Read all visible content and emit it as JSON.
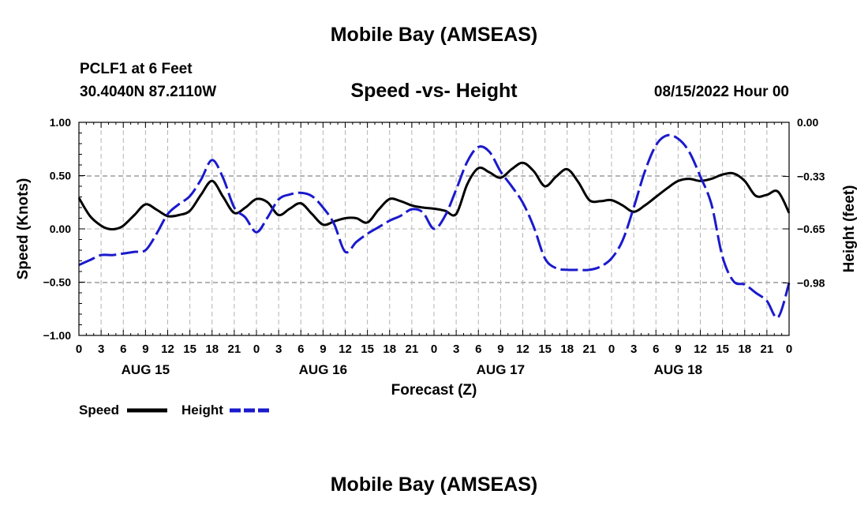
{
  "header": {
    "title": "Mobile Bay (AMSEAS)",
    "station": "PCLF1 at 6 Feet",
    "coords": "30.4040N  87.2110W",
    "subtitle": "Speed -vs- Height",
    "issue_time": "08/15/2022 Hour 00"
  },
  "footer": {
    "title": "Mobile Bay (AMSEAS)"
  },
  "legend": {
    "speed_label": "Speed",
    "height_label": "Height"
  },
  "colors": {
    "speed": "#000000",
    "height": "#1a1acc",
    "grid": "#b4b4b4"
  },
  "chart_data": {
    "type": "line",
    "title": "Speed -vs- Height",
    "xlabel": "Forecast (Z)",
    "ylabel_left": "Speed (Knots)",
    "ylabel_right": "Height (feet)",
    "x_units": "forecast hours",
    "xlim": [
      0,
      96
    ],
    "ylim_left": [
      -1.0,
      1.0
    ],
    "ylim_right": [
      -1.3,
      0.0
    ],
    "x_tick_labels": [
      "0",
      "3",
      "6",
      "9",
      "12",
      "15",
      "18",
      "21",
      "0",
      "3",
      "6",
      "9",
      "12",
      "15",
      "18",
      "21",
      "0",
      "3",
      "6",
      "9",
      "12",
      "15",
      "18",
      "21",
      "0",
      "3",
      "6",
      "9",
      "12",
      "15",
      "18",
      "21",
      "0"
    ],
    "day_labels": [
      {
        "label": "AUG 15",
        "hour": 9
      },
      {
        "label": "AUG 16",
        "hour": 33
      },
      {
        "label": "AUG 17",
        "hour": 57
      },
      {
        "label": "AUG 18",
        "hour": 81
      }
    ],
    "left_ticks": [
      {
        "value": 1.0,
        "label": "1.00"
      },
      {
        "value": 0.5,
        "label": "0.50"
      },
      {
        "value": 0.0,
        "label": "0.00"
      },
      {
        "value": -0.5,
        "label": "−0.50"
      },
      {
        "value": -1.0,
        "label": "−1.00"
      }
    ],
    "right_ticks": [
      {
        "value": 0.0,
        "label": "0.00"
      },
      {
        "value": -0.33,
        "label": "−0.33"
      },
      {
        "value": -0.65,
        "label": "−0.65"
      },
      {
        "value": -0.98,
        "label": "−0.98"
      }
    ],
    "series": [
      {
        "name": "Speed",
        "axis": "left",
        "style": "solid",
        "x": [
          0,
          1.5,
          3,
          4,
          5,
          6,
          7.5,
          9,
          10.5,
          12,
          13.5,
          15,
          16.5,
          18,
          19.5,
          21,
          22.5,
          24,
          25.5,
          27,
          28.5,
          30,
          31.5,
          33,
          34.5,
          36,
          37.5,
          39,
          40.5,
          42,
          43.5,
          45,
          46.5,
          48,
          49.5,
          51,
          52.5,
          54,
          55.5,
          57,
          58.5,
          60,
          61.5,
          63,
          64.5,
          66,
          67.5,
          69,
          70.5,
          72,
          73.5,
          75,
          76.5,
          78,
          79.5,
          81,
          82.5,
          84,
          85.5,
          87,
          88.5,
          90,
          91.5,
          93,
          94.5,
          96
        ],
        "values": [
          0.29,
          0.12,
          0.03,
          0.0,
          0.0,
          0.03,
          0.13,
          0.23,
          0.18,
          0.12,
          0.13,
          0.17,
          0.32,
          0.45,
          0.3,
          0.15,
          0.2,
          0.28,
          0.25,
          0.13,
          0.19,
          0.24,
          0.14,
          0.04,
          0.07,
          0.1,
          0.1,
          0.06,
          0.18,
          0.28,
          0.26,
          0.22,
          0.2,
          0.19,
          0.17,
          0.14,
          0.42,
          0.57,
          0.53,
          0.48,
          0.56,
          0.62,
          0.54,
          0.4,
          0.49,
          0.56,
          0.44,
          0.27,
          0.26,
          0.27,
          0.22,
          0.16,
          0.22,
          0.3,
          0.38,
          0.45,
          0.47,
          0.45,
          0.47,
          0.51,
          0.52,
          0.45,
          0.31,
          0.32,
          0.35,
          0.15
        ]
      },
      {
        "name": "Height",
        "axis": "right",
        "style": "dashed",
        "x": [
          0,
          1.5,
          3,
          4.5,
          6,
          7.5,
          9,
          10.5,
          12,
          13.5,
          15,
          16.5,
          18,
          19.5,
          21,
          22.5,
          24,
          25.5,
          27,
          28.5,
          30,
          31.5,
          33,
          34.5,
          36,
          37.5,
          39,
          40.5,
          42,
          43.5,
          45,
          46.5,
          48,
          49.5,
          51,
          52.5,
          54,
          55.5,
          57,
          58.5,
          60,
          61.5,
          63,
          64.5,
          66,
          67.5,
          69,
          70.5,
          72,
          73.5,
          75,
          76.5,
          78,
          79.5,
          81,
          82.5,
          84,
          85.5,
          87,
          88.5,
          90,
          91.5,
          93,
          94.5,
          96
        ],
        "values": [
          -0.87,
          -0.84,
          -0.81,
          -0.81,
          -0.8,
          -0.79,
          -0.78,
          -0.68,
          -0.56,
          -0.5,
          -0.45,
          -0.35,
          -0.23,
          -0.34,
          -0.52,
          -0.58,
          -0.67,
          -0.58,
          -0.47,
          -0.44,
          -0.43,
          -0.45,
          -0.52,
          -0.62,
          -0.79,
          -0.73,
          -0.68,
          -0.64,
          -0.6,
          -0.57,
          -0.53,
          -0.55,
          -0.65,
          -0.57,
          -0.41,
          -0.24,
          -0.15,
          -0.18,
          -0.3,
          -0.39,
          -0.49,
          -0.64,
          -0.83,
          -0.89,
          -0.9,
          -0.9,
          -0.9,
          -0.88,
          -0.83,
          -0.72,
          -0.52,
          -0.3,
          -0.14,
          -0.08,
          -0.1,
          -0.18,
          -0.33,
          -0.5,
          -0.82,
          -0.97,
          -0.99,
          -1.04,
          -1.09,
          -1.19,
          -0.98
        ]
      }
    ]
  }
}
